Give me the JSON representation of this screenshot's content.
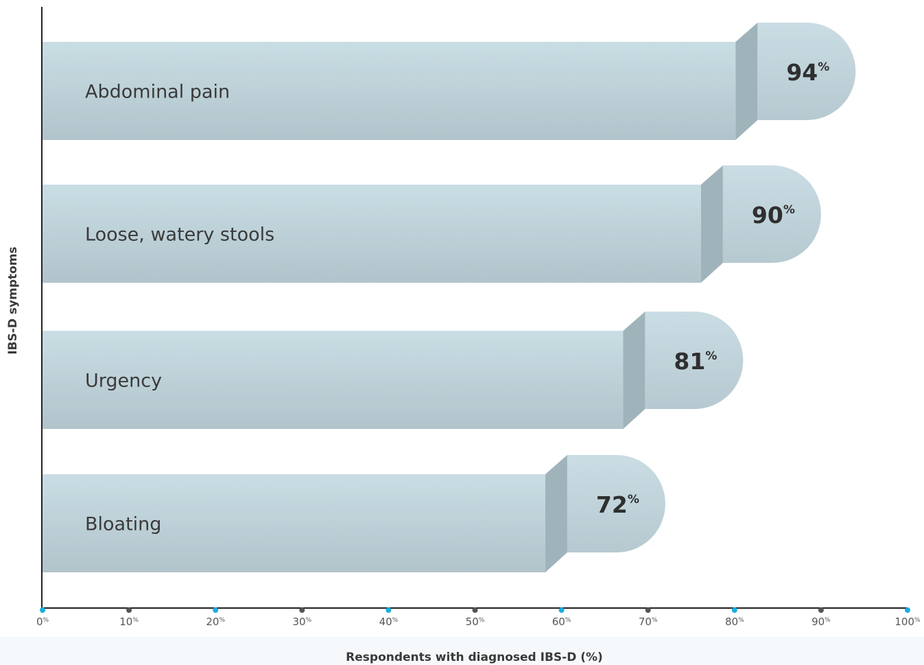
{
  "chart_data": {
    "type": "bar",
    "orientation": "horizontal",
    "categories": [
      "Abdominal pain",
      "Loose, watery stools",
      "Urgency",
      "Bloating"
    ],
    "values": [
      94,
      90,
      81,
      72
    ],
    "value_unit": "%",
    "xlabel": "Respondents with diagnosed IBS-D (%)",
    "ylabel": "IBS-D symptoms",
    "xlim": [
      0,
      100
    ],
    "xticks": [
      0,
      10,
      20,
      30,
      40,
      50,
      60,
      70,
      80,
      90,
      100
    ],
    "tick_unit": "%",
    "grid": false,
    "colors": {
      "bar_light": "#c8dce3",
      "bar_dark": "#b4c7ce",
      "bar_shade": "#9fb3ba",
      "axis": "#222222",
      "tick_dot_accent": "#1aaee0",
      "tick_dot_plain": "#555555"
    }
  }
}
